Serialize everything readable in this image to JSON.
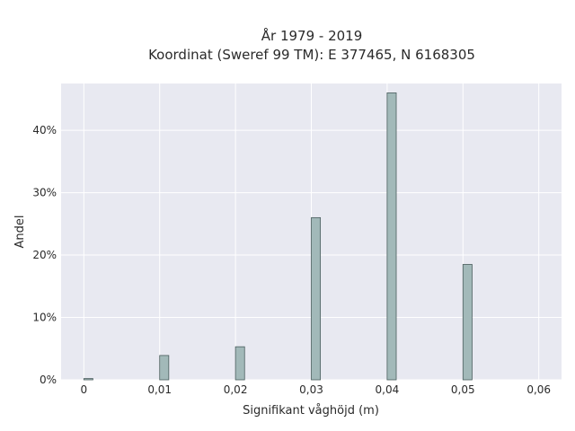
{
  "chart_data": {
    "type": "bar",
    "title_line1": "År 1979 - 2019",
    "title_line2": "Koordinat (Sweref 99 TM): E 377465, N 6168305",
    "xlabel": "Signifikant våghöjd (m)",
    "ylabel": "Andel",
    "x_ticks": [
      {
        "value": 0,
        "label": "0"
      },
      {
        "value": 0.01,
        "label": "0,01"
      },
      {
        "value": 0.02,
        "label": "0,02"
      },
      {
        "value": 0.03,
        "label": "0,03"
      },
      {
        "value": 0.04,
        "label": "0,04"
      },
      {
        "value": 0.05,
        "label": "0,05"
      },
      {
        "value": 0.06,
        "label": "0,06"
      }
    ],
    "y_ticks": [
      {
        "value": 0,
        "label": "0%"
      },
      {
        "value": 10,
        "label": "10%"
      },
      {
        "value": 20,
        "label": "20%"
      },
      {
        "value": 30,
        "label": "30%"
      },
      {
        "value": 40,
        "label": "40%"
      }
    ],
    "xlim": [
      -0.003,
      0.063
    ],
    "ylim": [
      0,
      47.5
    ],
    "grid": true,
    "bars": [
      {
        "x": 0.0,
        "value": 0.2
      },
      {
        "x": 0.01,
        "value": 3.9
      },
      {
        "x": 0.02,
        "value": 5.3
      },
      {
        "x": 0.03,
        "value": 26.0
      },
      {
        "x": 0.04,
        "value": 46.0
      },
      {
        "x": 0.05,
        "value": 18.5
      }
    ],
    "bar_width": 0.0012,
    "colors": {
      "plot_background": "#e8e9f1",
      "bar_fill": "#a2b9b9",
      "bar_edge": "#4a5d5d"
    }
  }
}
